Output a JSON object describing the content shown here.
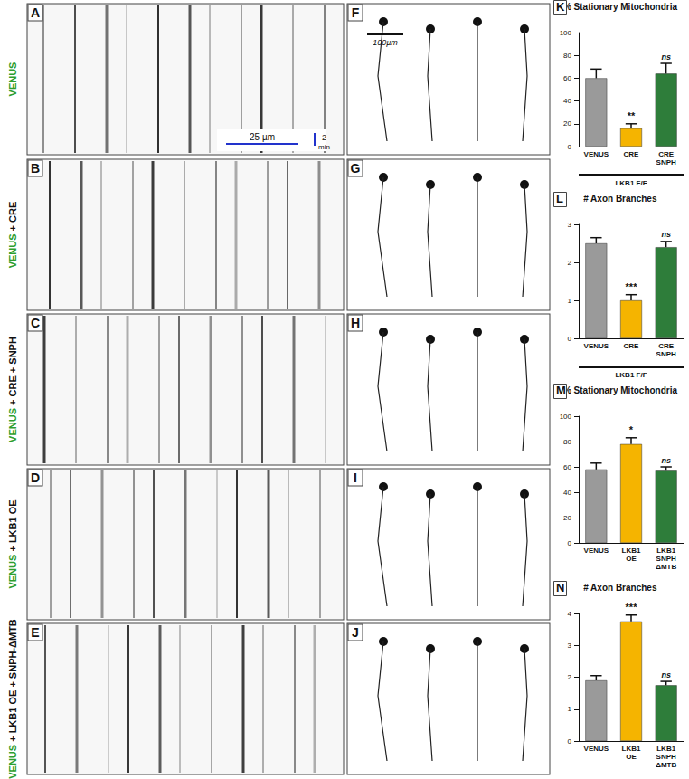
{
  "panels": {
    "rows": [
      {
        "label": "VENUS",
        "kymograph": "A",
        "tracing": "F"
      },
      {
        "label": "VENUS + CRE",
        "kymograph": "B",
        "tracing": "G"
      },
      {
        "label": "VENUS + CRE + SNPH",
        "kymograph": "C",
        "tracing": "H"
      },
      {
        "label": "VENUS + LKB1 OE",
        "kymograph": "D",
        "tracing": "I"
      },
      {
        "label": "VENUS + LKB1 OE + SNPH-ΔMTB",
        "kymograph": "E",
        "tracing": "J"
      }
    ],
    "scale_bars": {
      "kymograph_distance": "25 µm",
      "kymograph_time": [
        "2",
        "min"
      ],
      "tracing": "100µm"
    }
  },
  "chart_data": [
    {
      "panel": "K",
      "type": "bar",
      "title": "% Stationary Mitochondria",
      "categories": [
        "VENUS",
        "CRE",
        "CRE\nSNPH"
      ],
      "values": [
        60,
        16,
        64
      ],
      "errors": [
        8,
        4,
        9
      ],
      "colors": [
        "#9a9a9a",
        "#f5b400",
        "#2e7d3a"
      ],
      "ylim": [
        0,
        100
      ],
      "yticks": [
        0,
        20,
        40,
        60,
        80,
        100
      ],
      "annotations": [
        null,
        "**",
        "ns"
      ],
      "bracket_label": "LKB1 F/F"
    },
    {
      "panel": "L",
      "type": "bar",
      "title": "# Axon Branches",
      "categories": [
        "VENUS",
        "CRE",
        "CRE\nSNPH"
      ],
      "values": [
        2.5,
        1.0,
        2.4
      ],
      "errors": [
        0.15,
        0.15,
        0.15
      ],
      "colors": [
        "#9a9a9a",
        "#f5b400",
        "#2e7d3a"
      ],
      "ylim": [
        0,
        3
      ],
      "yticks": [
        0,
        1,
        2,
        3
      ],
      "annotations": [
        null,
        "***",
        "ns"
      ],
      "bracket_label": "LKB1 F/F"
    },
    {
      "panel": "M",
      "type": "bar",
      "title": "% Stationary Mitochondria",
      "categories": [
        "VENUS",
        "LKB1\nOE",
        "LKB1\nSNPH\nΔMTB"
      ],
      "values": [
        58,
        78,
        57
      ],
      "errors": [
        5,
        5,
        3
      ],
      "colors": [
        "#9a9a9a",
        "#f5b400",
        "#2e7d3a"
      ],
      "ylim": [
        0,
        100
      ],
      "yticks": [
        0,
        20,
        40,
        60,
        80,
        100
      ],
      "annotations": [
        null,
        "*",
        "ns"
      ]
    },
    {
      "panel": "N",
      "type": "bar",
      "title": "# Axon Branches",
      "categories": [
        "VENUS",
        "LKB1\nOE",
        "LKB1\nSNPH\nΔMTB"
      ],
      "values": [
        1.9,
        3.75,
        1.75
      ],
      "errors": [
        0.15,
        0.2,
        0.12
      ],
      "colors": [
        "#9a9a9a",
        "#f5b400",
        "#2e7d3a"
      ],
      "ylim": [
        0,
        4
      ],
      "yticks": [
        0,
        1,
        2,
        3,
        4
      ],
      "annotations": [
        null,
        "***",
        "ns"
      ]
    }
  ]
}
